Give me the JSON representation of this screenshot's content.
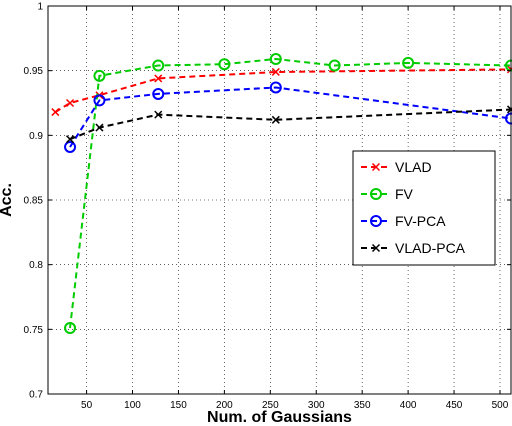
{
  "chart_data": {
    "type": "line",
    "title": "",
    "xlabel": "Num. of Gaussians",
    "ylabel": "Acc.",
    "xlim": [
      8,
      512
    ],
    "ylim": [
      0.7,
      1.0
    ],
    "xticks": [
      50,
      100,
      150,
      200,
      250,
      300,
      350,
      400,
      450,
      500
    ],
    "yticks": [
      0.7,
      0.75,
      0.8,
      0.85,
      0.9,
      0.95,
      1
    ],
    "ytick_labels": [
      "0.7",
      "0.75",
      "0.8",
      "0.85",
      "0.9",
      "0.95",
      "1"
    ],
    "grid": true,
    "legend_position": "center-right",
    "series": [
      {
        "name": "VLAD",
        "color": "#ff0000",
        "marker": "x",
        "linestyle": "dashed",
        "x": [
          16,
          32,
          64,
          128,
          256,
          512
        ],
        "y": [
          0.918,
          0.925,
          0.931,
          0.944,
          0.949,
          0.951
        ]
      },
      {
        "name": "FV",
        "color": "#00cc00",
        "marker": "o",
        "linestyle": "dashed",
        "x": [
          32,
          64,
          128,
          200,
          256,
          320,
          400,
          512
        ],
        "y": [
          0.751,
          0.946,
          0.954,
          0.955,
          0.959,
          0.954,
          0.956,
          0.954
        ]
      },
      {
        "name": "FV-PCA",
        "color": "#0000ff",
        "marker": "o",
        "linestyle": "dashed",
        "x": [
          32,
          64,
          128,
          256,
          512
        ],
        "y": [
          0.891,
          0.927,
          0.932,
          0.937,
          0.913
        ]
      },
      {
        "name": "VLAD-PCA",
        "color": "#000000",
        "marker": "x",
        "linestyle": "dashed",
        "x": [
          32,
          64,
          128,
          256,
          512
        ],
        "y": [
          0.897,
          0.906,
          0.916,
          0.912,
          0.92
        ]
      }
    ]
  }
}
